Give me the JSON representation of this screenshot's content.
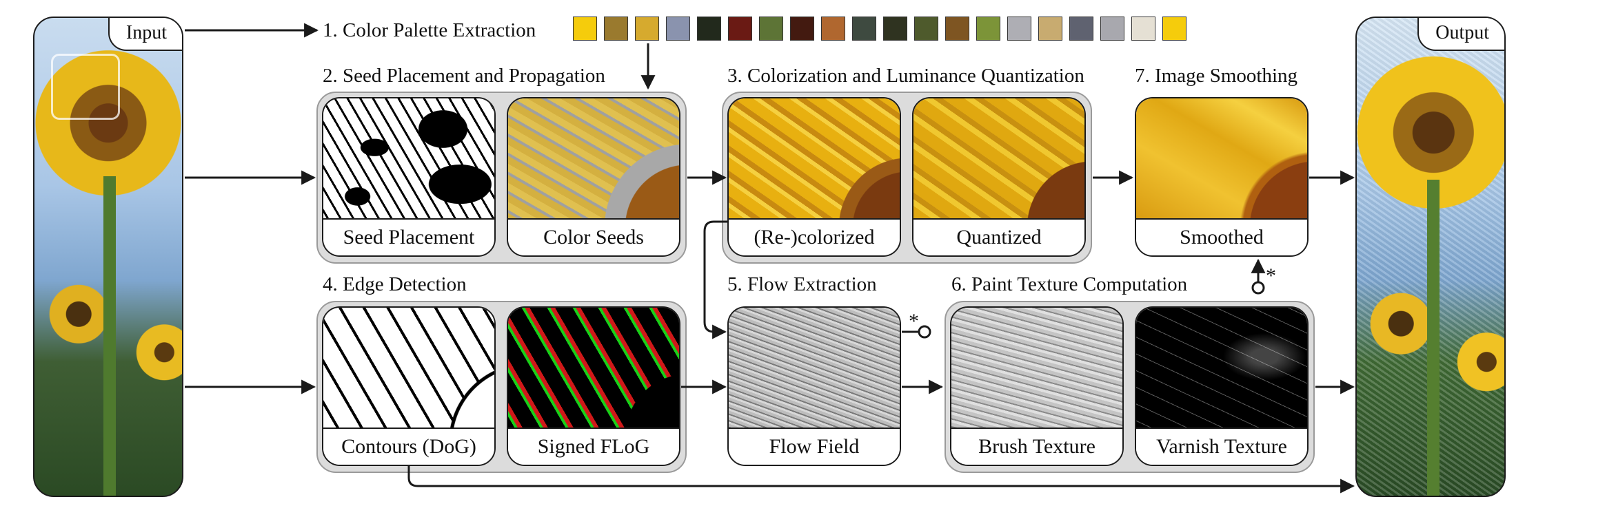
{
  "input_label": "Input",
  "output_label": "Output",
  "steps": {
    "s1": "1. Color Palette Extraction",
    "s2": "2. Seed Placement and Propagation",
    "s3": "3. Colorization and Luminance Quantization",
    "s4": "4. Edge Detection",
    "s5": "5. Flow Extraction",
    "s6": "6. Paint Texture Computation",
    "s7": "7. Image Smoothing"
  },
  "cards": {
    "seed_placement": "Seed Placement",
    "color_seeds": "Color Seeds",
    "recolorized": "(Re-)colorized",
    "quantized": "Quantized",
    "smoothed": "Smoothed",
    "contours": "Contours (DoG)",
    "signed_flog": "Signed FLoG",
    "flow_field": "Flow Field",
    "brush_texture": "Brush Texture",
    "varnish_texture": "Varnish Texture"
  },
  "palette": [
    "#f5cc0c",
    "#9a7a2e",
    "#d6aa2e",
    "#8a93ae",
    "#22291c",
    "#6a1a14",
    "#5d7436",
    "#431a10",
    "#b0672f",
    "#3e4a40",
    "#2f3320",
    "#4e5a2c",
    "#7e5522",
    "#7c9438",
    "#aeaeb4",
    "#c8ab70",
    "#5f6270",
    "#a8a8ae",
    "#e5e0d4",
    "#f5cc0c"
  ],
  "star_markers": [
    "*",
    "*"
  ]
}
